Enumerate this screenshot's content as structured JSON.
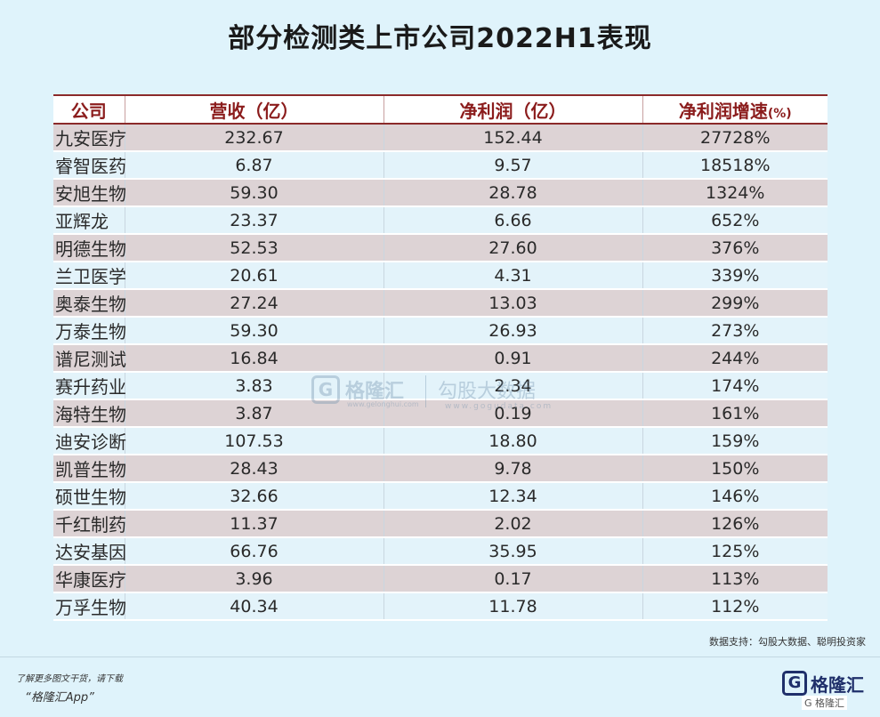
{
  "title": "部分检测类上市公司2022H1表现",
  "table": {
    "headers": {
      "company": "公司",
      "revenue": "营收（亿）",
      "profit": "净利润（亿）",
      "growth": "净利润增速",
      "growth_unit": "(%)"
    },
    "rows": [
      {
        "company": "九安医疗",
        "revenue": "232.67",
        "profit": "152.44",
        "growth": "27728%"
      },
      {
        "company": "睿智医药",
        "revenue": "6.87",
        "profit": "9.57",
        "growth": "18518%"
      },
      {
        "company": "安旭生物",
        "revenue": "59.30",
        "profit": "28.78",
        "growth": "1324%"
      },
      {
        "company": " 亚辉龙",
        "revenue": "23.37",
        "profit": "6.66",
        "growth": "652%"
      },
      {
        "company": "明德生物",
        "revenue": "52.53",
        "profit": "27.60",
        "growth": "376%"
      },
      {
        "company": "兰卫医学",
        "revenue": "20.61",
        "profit": "4.31",
        "growth": "339%"
      },
      {
        "company": "奥泰生物",
        "revenue": "27.24",
        "profit": "13.03",
        "growth": "299%"
      },
      {
        "company": "万泰生物",
        "revenue": "59.30",
        "profit": "26.93",
        "growth": "273%"
      },
      {
        "company": "谱尼测试",
        "revenue": "16.84",
        "profit": "0.91",
        "growth": "244%"
      },
      {
        "company": "赛升药业",
        "revenue": "3.83",
        "profit": "2.34",
        "growth": "174%"
      },
      {
        "company": "海特生物",
        "revenue": "3.87",
        "profit": "0.19",
        "growth": "161%"
      },
      {
        "company": "迪安诊断",
        "revenue": "107.53",
        "profit": "18.80",
        "growth": "159%"
      },
      {
        "company": "凯普生物",
        "revenue": "28.43",
        "profit": "9.78",
        "growth": "150%"
      },
      {
        "company": "硕世生物",
        "revenue": "32.66",
        "profit": "12.34",
        "growth": "146%"
      },
      {
        "company": "千红制药",
        "revenue": "11.37",
        "profit": "2.02",
        "growth": "126%"
      },
      {
        "company": "达安基因",
        "revenue": "66.76",
        "profit": "35.95",
        "growth": "125%"
      },
      {
        "company": "华康医疗",
        "revenue": "3.96",
        "profit": "0.17",
        "growth": "113%"
      },
      {
        "company": "万孚生物",
        "revenue": "40.34",
        "profit": "11.78",
        "growth": "112%"
      }
    ]
  },
  "watermark": {
    "logo_char": "G",
    "name": "格隆汇",
    "url": "www.gelonghui.com",
    "name2": "勾股大数据",
    "url2": "www.gogudata.com"
  },
  "source": "数据支持：勾股大数据、聪明投资家",
  "promo": {
    "line1": "了解更多图文干货，请下载",
    "line2": "“格隆汇App”"
  },
  "brand": {
    "logo_char": "G",
    "name": "格隆汇",
    "sub": "G 格隆汇"
  },
  "colors": {
    "background": "#dff3fb",
    "header_text": "#8b1c1c",
    "row_odd": "#ddd3d5",
    "row_even": "#e3f3fa"
  }
}
